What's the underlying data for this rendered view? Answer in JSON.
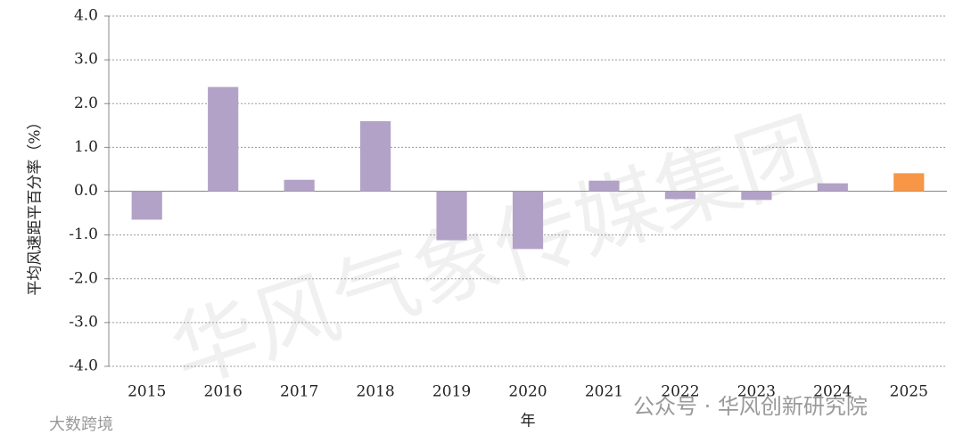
{
  "chart_data": {
    "type": "bar",
    "y_label": "平均风速距平百分率（%）",
    "x_label": "年",
    "categories": [
      "2015",
      "2016",
      "2017",
      "2018",
      "2019",
      "2020",
      "2021",
      "2022",
      "2023",
      "2024",
      "2025"
    ],
    "values": [
      -0.65,
      2.38,
      0.26,
      1.6,
      -1.12,
      -1.32,
      0.24,
      -0.18,
      -0.2,
      0.18,
      0.41
    ],
    "colors": [
      "#b3a2c7",
      "#b3a2c7",
      "#b3a2c7",
      "#b3a2c7",
      "#b3a2c7",
      "#b3a2c7",
      "#b3a2c7",
      "#b3a2c7",
      "#b3a2c7",
      "#b3a2c7",
      "#f79646"
    ],
    "ylim": [
      -4,
      4
    ],
    "yticks": [
      {
        "value": -4,
        "label": "-4.0"
      },
      {
        "value": -3,
        "label": "-3.0"
      },
      {
        "value": -2,
        "label": "-2.0"
      },
      {
        "value": -1,
        "label": "-1.0"
      },
      {
        "value": 0,
        "label": "0.0"
      },
      {
        "value": 1,
        "label": "1.0"
      },
      {
        "value": 2,
        "label": "2.0"
      },
      {
        "value": 3,
        "label": "3.0"
      },
      {
        "value": 4,
        "label": "4.0"
      }
    ],
    "grid": true,
    "watermarks": [
      "华风气象传媒集团",
      "公众号 · 华风创新研究院",
      "大数跨境"
    ]
  }
}
